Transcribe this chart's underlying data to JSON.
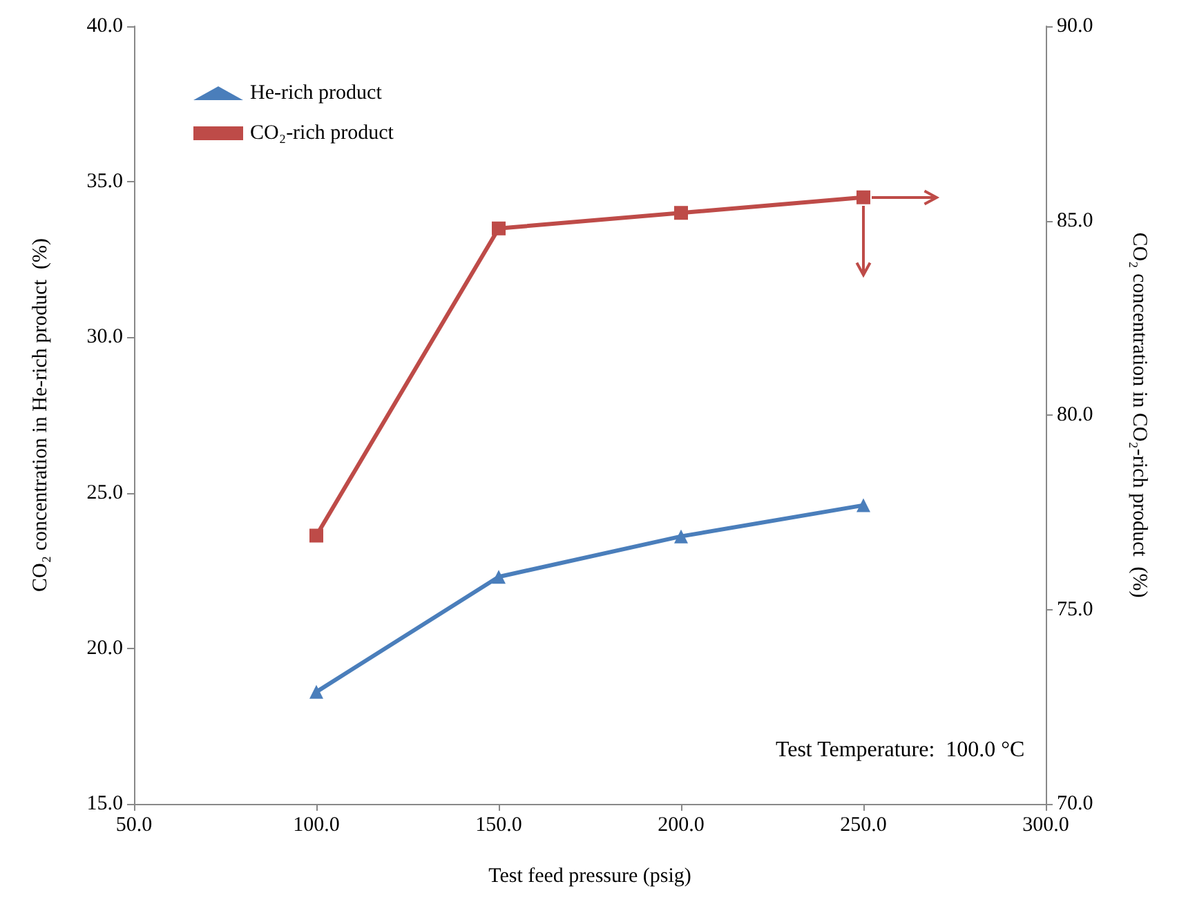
{
  "chart_data": {
    "type": "line",
    "xlabel": "Test feed pressure (psig)",
    "ylabel": "CO₂ concentration in He-rich product  (%)",
    "y2label": "CO₂ concentration in CO₂-rich product  (%)",
    "x": [
      100,
      150,
      200,
      250
    ],
    "series": [
      {
        "name": "He-rich product",
        "color": "#4a7ebb",
        "values": [
          18.6,
          22.3,
          23.6,
          24.6
        ],
        "marker": "triangle"
      },
      {
        "name": "CO₂-rich product",
        "color": "#be4b48",
        "values": [
          76.9,
          84.8,
          85.2,
          85.6
        ],
        "marker": "square",
        "axis": "y2"
      }
    ],
    "xlim": [
      50,
      300
    ],
    "xticks": [
      {
        "value": 50,
        "label": "50.0"
      },
      {
        "value": 100,
        "label": "100.0"
      },
      {
        "value": 150,
        "label": "150.0"
      },
      {
        "value": 200,
        "label": "200.0"
      },
      {
        "value": 250,
        "label": "250.0"
      },
      {
        "value": 300,
        "label": "300.0"
      }
    ],
    "ylim": [
      15,
      40
    ],
    "yticks": [
      {
        "value": 15,
        "label": "15.0"
      },
      {
        "value": 20,
        "label": "20.0"
      },
      {
        "value": 25,
        "label": "25.0"
      },
      {
        "value": 30,
        "label": "30.0"
      },
      {
        "value": 35,
        "label": "35.0"
      },
      {
        "value": 40,
        "label": "40.0"
      }
    ],
    "y2lim": [
      70,
      90
    ],
    "y2ticks": [
      {
        "value": 70,
        "label": "70.0"
      },
      {
        "value": 75,
        "label": "75.0"
      },
      {
        "value": 80,
        "label": "80.0"
      },
      {
        "value": 85,
        "label": "85.0"
      },
      {
        "value": 90,
        "label": "90.0"
      }
    ],
    "annotations": [
      "Test Temperature:  100.0 °C"
    ],
    "legend": "top left",
    "grid": false,
    "line_style": "solid"
  }
}
